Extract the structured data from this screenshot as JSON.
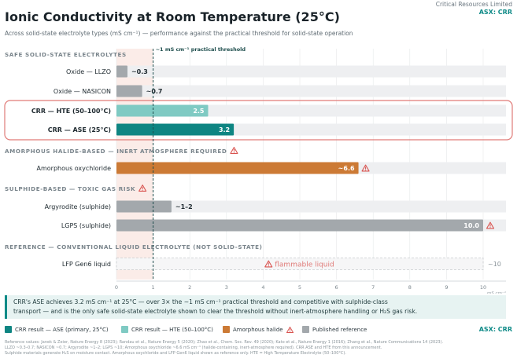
{
  "header": {
    "company": "Critical Resources Limited",
    "ticker": "ASX: CRR",
    "title": "Ionic Conductivity at Room Temperature (25°C)",
    "subtitle": "Across solid-state electrolyte types (mS cm⁻¹) — performance against the practical threshold for solid-state operation"
  },
  "chart_data": {
    "type": "bar",
    "orientation": "horizontal",
    "xlim": [
      0,
      10
    ],
    "x_ticks": [
      0,
      1,
      2,
      3,
      4,
      5,
      6,
      7,
      8,
      9,
      10
    ],
    "x_unit": "mS cm⁻¹",
    "grid": true,
    "threshold": {
      "value": 1,
      "label": "~1 mS cm⁻¹ practical threshold"
    },
    "sections": [
      {
        "title": "SAFE SOLID-STATE ELECTROLYTES",
        "warning": false,
        "bars": [
          {
            "label": "Oxide — LLZO",
            "value": 0.3,
            "value_label": "~0.3",
            "color": "#a3a8ac",
            "label_inside": false,
            "bold": false,
            "warning": false
          },
          {
            "label": "Oxide — NASICON",
            "value": 0.7,
            "value_label": "~0.7",
            "color": "#a3a8ac",
            "label_inside": false,
            "bold": false,
            "warning": false
          }
        ]
      },
      {
        "title": "",
        "highlight": true,
        "bars": [
          {
            "label": "CRR — HTE (50–100°C)",
            "value": 2.5,
            "value_label": "2.5",
            "color": "#7fcac3",
            "label_inside": true,
            "bold": true,
            "warning": false
          },
          {
            "label": "CRR — ASE (25°C)",
            "value": 3.2,
            "value_label": "3.2",
            "color": "#0e8582",
            "label_inside": true,
            "bold": true,
            "warning": false
          }
        ]
      },
      {
        "title": "AMORPHOUS HALIDE-BASED — INERT ATMOSPHERE REQUIRED",
        "warning": true,
        "bars": [
          {
            "label": "Amorphous oxychloride",
            "value": 6.6,
            "value_label": "~6.6",
            "color": "#cc7a35",
            "label_inside": true,
            "bold": false,
            "warning": true
          }
        ]
      },
      {
        "title": "SULPHIDE-BASED — TOXIC GAS RISK",
        "warning": true,
        "bars": [
          {
            "label": "Argyrodite (sulphide)",
            "value": 1.5,
            "value_label": "~1–2",
            "color": "#a3a8ac",
            "label_inside": false,
            "bold": false,
            "warning": false
          },
          {
            "label": "LGPS (sulphide)",
            "value": 10,
            "value_label": "10.0",
            "color": "#a3a8ac",
            "label_inside": true,
            "bold": false,
            "warning": true
          }
        ]
      },
      {
        "title": "REFERENCE — CONVENTIONAL LIQUID ELECTROLYTE (NOT SOLID-STATE)",
        "warning": false,
        "bars": [
          {
            "label": "LFP Gen6 liquid",
            "value": 10,
            "value_label": "~10",
            "dashed": true,
            "note": "flammable liquid",
            "color": "#c7cbce",
            "label_inside": false,
            "bold": false,
            "warning": false
          }
        ]
      }
    ]
  },
  "callout": {
    "line1": "CRR's ASE achieves 3.2 mS cm⁻¹ at 25°C — over 3× the ~1 mS cm⁻¹ practical threshold and competitive with sulphide-class",
    "line2": "transport — and is the only safe solid-state electrolyte shown to clear the threshold without inert-atmosphere handling or H₂S gas risk."
  },
  "legend": {
    "items": [
      {
        "label": "CRR result — ASE (primary, 25°C)",
        "color": "#0e8582",
        "warning": false
      },
      {
        "label": "CRR result — HTE (50–100°C)",
        "color": "#7fcac3",
        "warning": false
      },
      {
        "label": "Amorphous halide",
        "color": "#cc7a35",
        "warning": true
      },
      {
        "label": "Published reference",
        "color": "#a3a8ac",
        "warning": false
      }
    ],
    "ticker": "ASX: CRR"
  },
  "footnote": {
    "line1": "Reference values: Janek & Zeier, Nature Energy 8 (2023); Randau et al., Nature Energy 5 (2020); Zhao et al., Chem. Soc. Rev. 49 (2020); Kato et al., Nature Energy 1 (2016); Zhang et al., Nature Communications 14 (2023).",
    "line2": "LLZO ~0.3–0.7; NASICON ~0.7; Argyrodite ~1–2; LGPS ~10; Amorphous oxychloride ~6.6 mS cm⁻¹ (halide-containing, inert-atmosphere required). CRR ASE and HTE from this announcement.",
    "line3": "Sulphide materials generate H₂S on moisture contact. Amorphous oxychloride and LFP Gen6 liquid shown as reference only. HTE = High Temperature Electrolyte (50–100°C)."
  }
}
